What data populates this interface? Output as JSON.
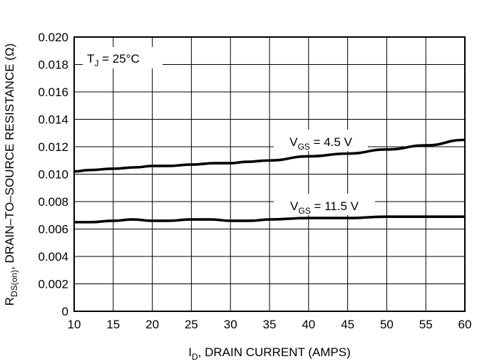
{
  "chart_data": {
    "type": "line",
    "xlabel": "I_D, DRAIN CURRENT (AMPS)",
    "ylabel": "R_DS(on), DRAIN–TO–SOURCE RESISTANCE (Ω)",
    "xlim": [
      10,
      60
    ],
    "ylim": [
      0,
      0.02
    ],
    "x_ticks": [
      "10",
      "15",
      "20",
      "25",
      "30",
      "35",
      "40",
      "45",
      "50",
      "55",
      "60"
    ],
    "y_ticks": [
      "0",
      "0.002",
      "0.004",
      "0.006",
      "0.008",
      "0.010",
      "0.012",
      "0.014",
      "0.016",
      "0.018",
      "0.020"
    ],
    "grid": true,
    "annotation": "T_J = 25°C",
    "series": [
      {
        "name": "V_GS = 4.5 V",
        "x": [
          10,
          12,
          15,
          18,
          20,
          22,
          25,
          28,
          30,
          32,
          35,
          40,
          45,
          50,
          55,
          60
        ],
        "y": [
          0.0102,
          0.0103,
          0.0104,
          0.0105,
          0.0106,
          0.0106,
          0.0107,
          0.0108,
          0.0108,
          0.0109,
          0.011,
          0.0113,
          0.0115,
          0.0118,
          0.0121,
          0.0125
        ]
      },
      {
        "name": "V_GS = 11.5 V",
        "x": [
          10,
          12,
          15,
          17.5,
          20,
          22,
          25,
          27.5,
          30,
          32.5,
          35,
          40,
          45,
          50,
          55,
          60
        ],
        "y": [
          0.0065,
          0.0065,
          0.0066,
          0.0067,
          0.0066,
          0.0066,
          0.0067,
          0.0067,
          0.0066,
          0.0066,
          0.0067,
          0.0068,
          0.0068,
          0.0069,
          0.0069,
          0.0069
        ]
      }
    ]
  }
}
